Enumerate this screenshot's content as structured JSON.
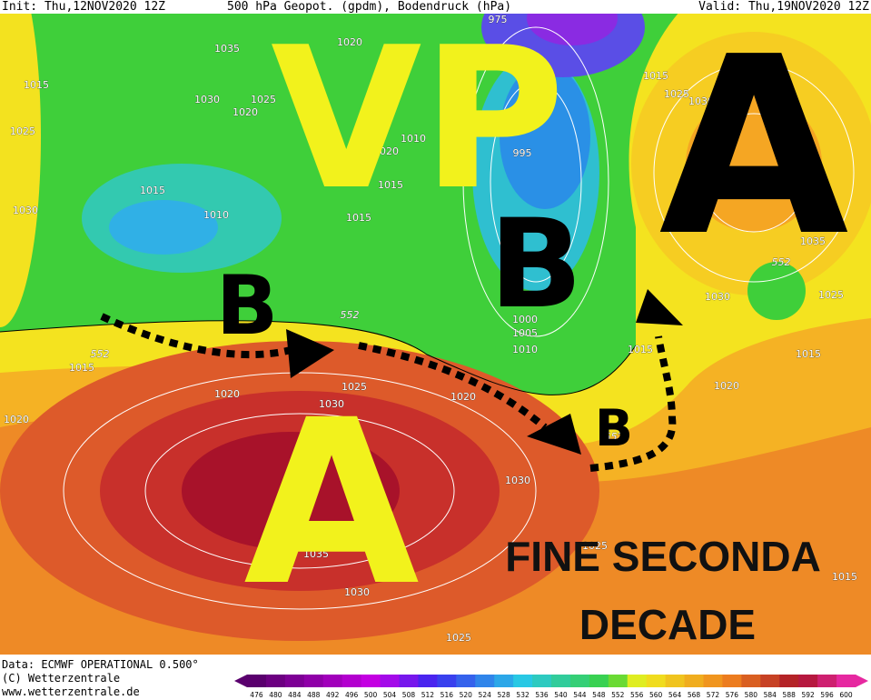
{
  "header": {
    "init": "Init: Thu,12NOV2020 12Z",
    "title": "500 hPa Geopot. (gpdm), Bodendruck (hPa)",
    "valid": "Valid: Thu,19NOV2020 12Z"
  },
  "annotations": {
    "vp": "VP",
    "b_north": "B",
    "a_east": "A",
    "b_west": "B",
    "a_south": "A",
    "b_small": "B",
    "caption": [
      "FINE SECONDA",
      "DECADE"
    ]
  },
  "isobar_labels": [
    "1035",
    "1020",
    "1015",
    "1030",
    "1025",
    "1020",
    "1025",
    "1020",
    "1010",
    "1015",
    "1015",
    "1030",
    "1010",
    "1015",
    "995",
    "975",
    "1000",
    "1005",
    "1010",
    "1015",
    "1020",
    "1025",
    "1030",
    "1020",
    "1020",
    "1030",
    "1035",
    "1030",
    "1025",
    "1025",
    "1015",
    "1020",
    "1015",
    "1015",
    "1030",
    "1025",
    "1035",
    "1015",
    "1025",
    "1030"
  ],
  "contour_labels": [
    "552",
    "552",
    "552",
    "552"
  ],
  "footer": {
    "data": "Data: ECMWF OPERATIONAL 0.500°",
    "copyright": "(C) Wetterzentrale",
    "url": "www.wetterzentrale.de"
  },
  "colorbar": {
    "ticks": [
      476,
      480,
      484,
      488,
      492,
      496,
      500,
      504,
      508,
      512,
      516,
      520,
      524,
      528,
      532,
      536,
      540,
      544,
      548,
      552,
      556,
      560,
      564,
      568,
      572,
      576,
      580,
      584,
      588,
      592,
      596,
      600
    ]
  }
}
